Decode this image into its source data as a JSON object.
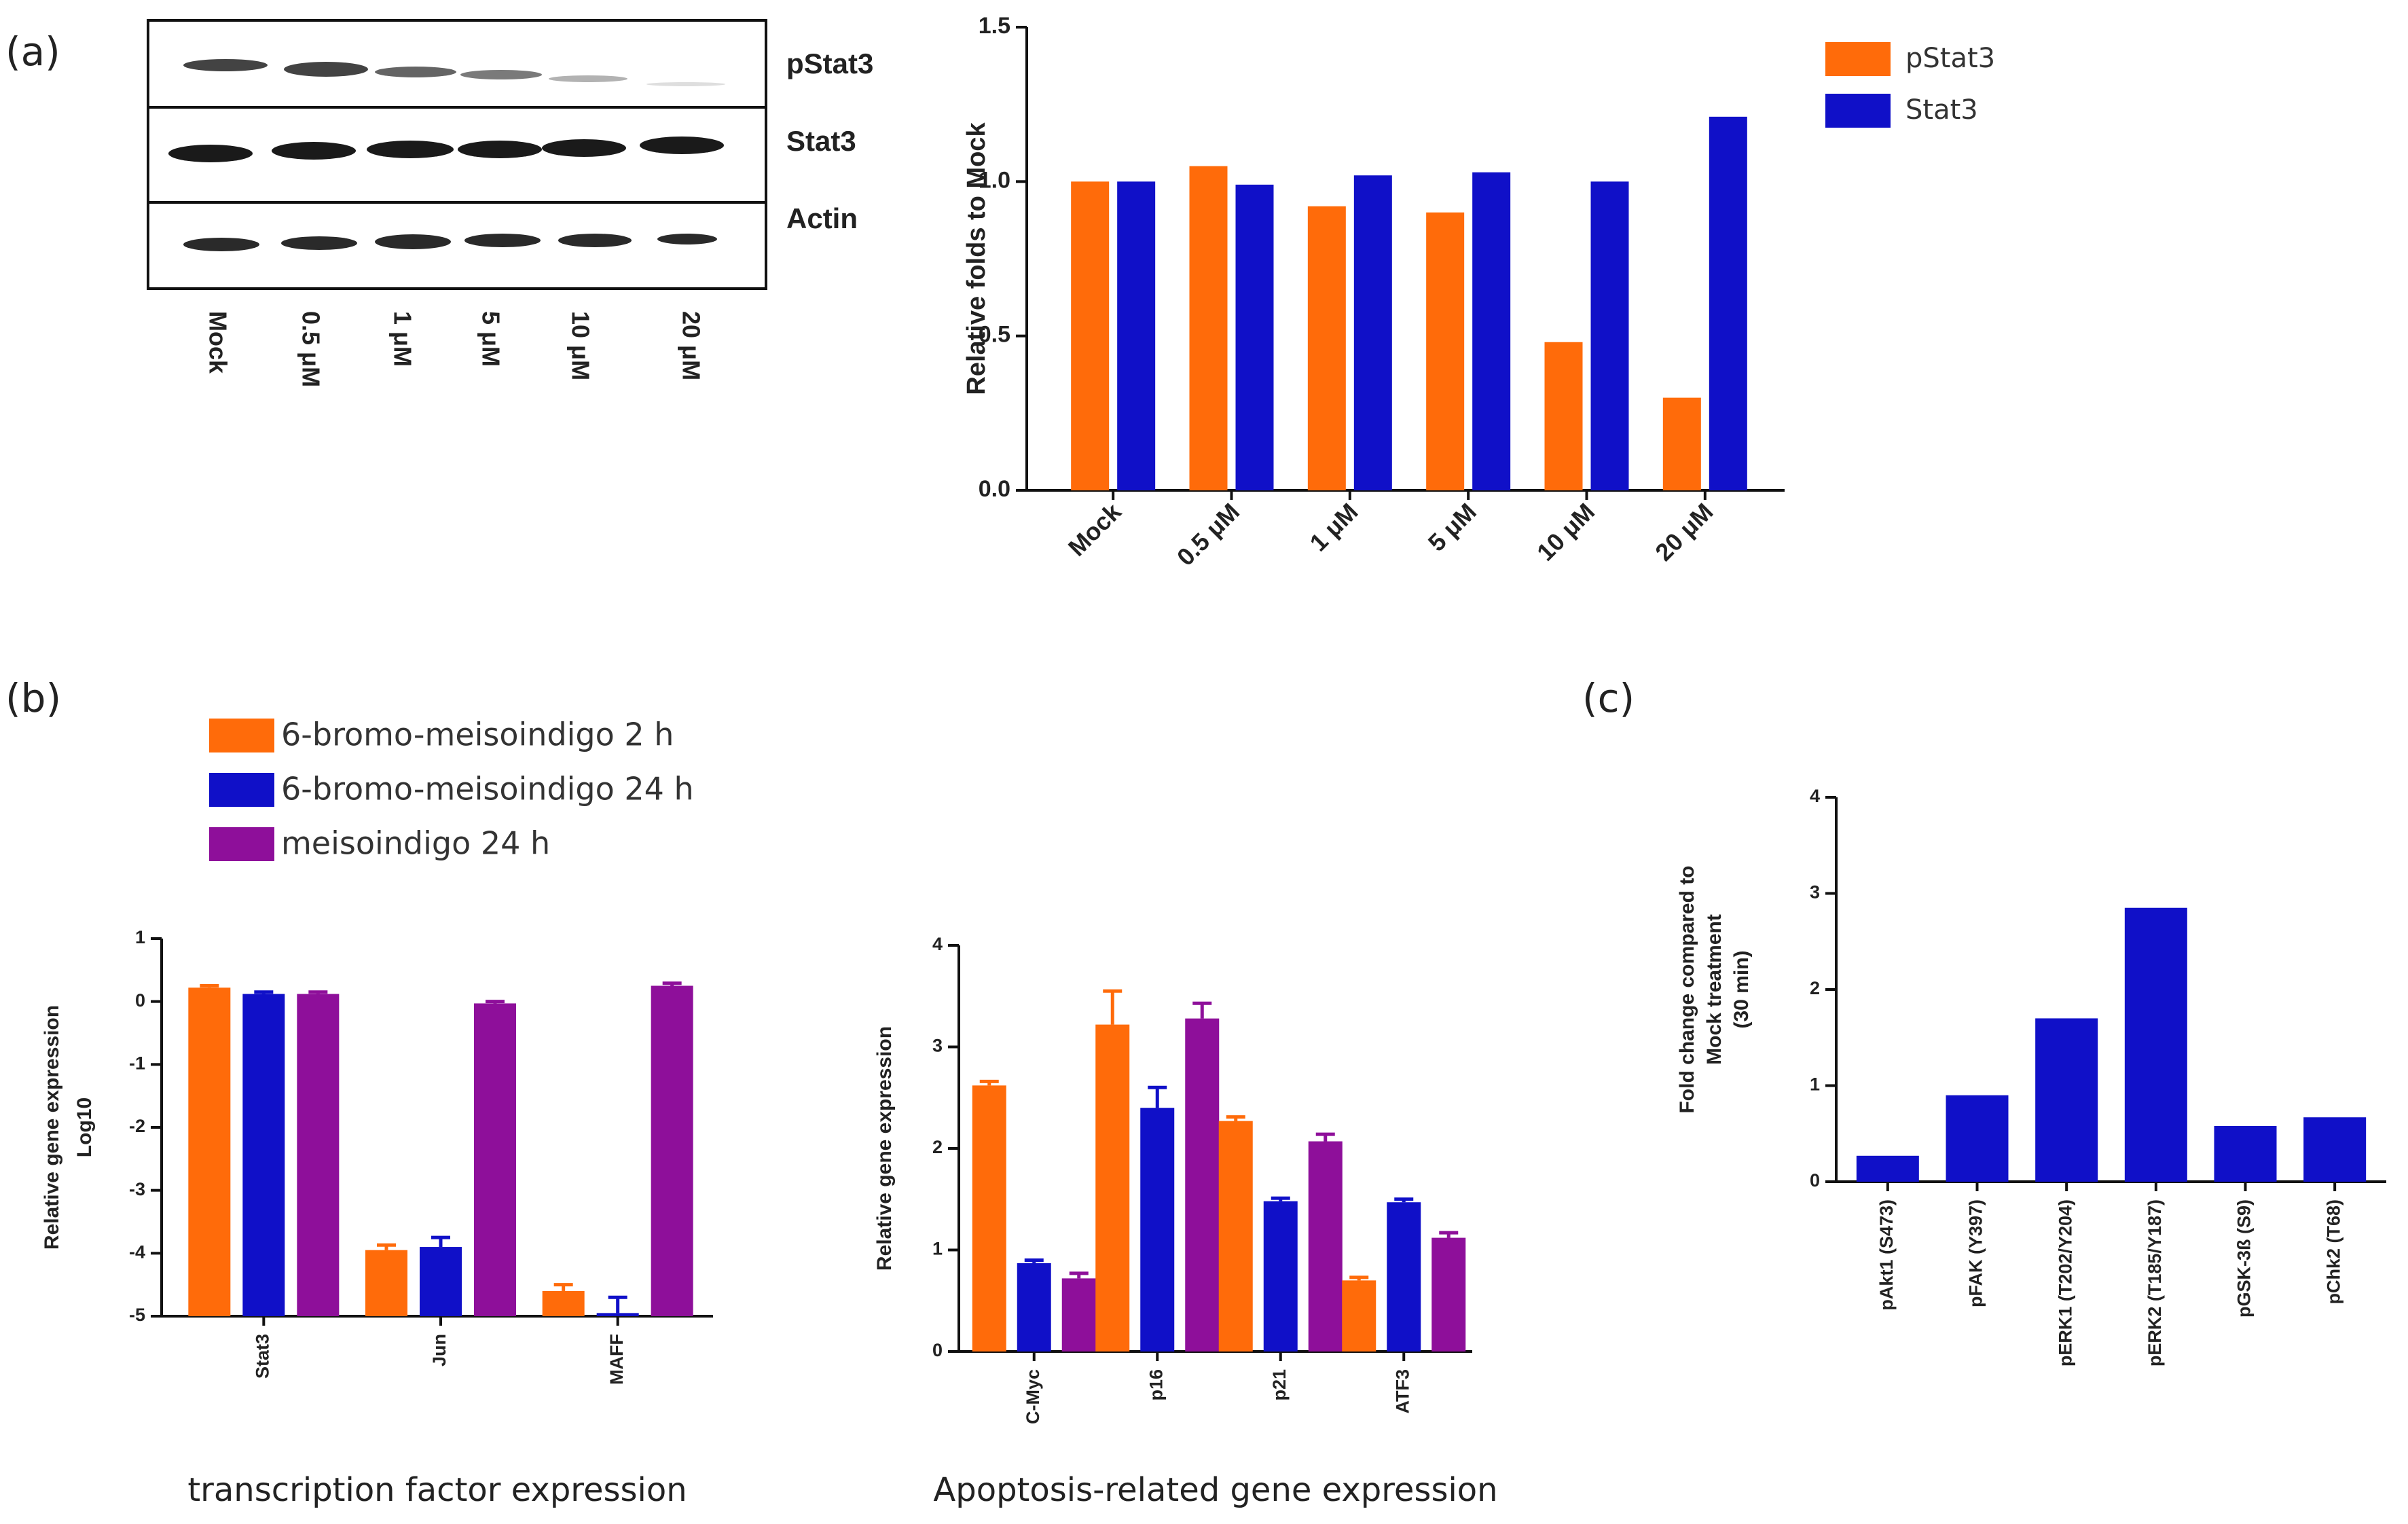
{
  "panels": {
    "a": "(a)",
    "b": "(b)",
    "c": "(c)"
  },
  "colors": {
    "orange": "#FF6B0A",
    "blue": "#1010C8",
    "purple": "#8E0F9A"
  },
  "western_blot": {
    "rows": [
      "pStat3",
      "Stat3",
      "Actin"
    ],
    "lanes": [
      "Mock",
      "0.5 μM",
      "1 μM",
      "5 μM",
      "10 μM",
      "20 μM"
    ]
  },
  "chart_data": [
    {
      "id": "a",
      "type": "bar",
      "title": "",
      "xlabel": "",
      "ylabel": "Relative folds to Mock",
      "ylim": [
        0,
        1.5
      ],
      "yticks": [
        0.0,
        0.5,
        1.0,
        1.5
      ],
      "ytick_labels": [
        "0.0",
        "0.5",
        "1.0",
        "1.5"
      ],
      "categories": [
        "Mock",
        "0.5 μM",
        "1 μM",
        "5 μM",
        "10 μM",
        "20 μM"
      ],
      "legend_position": "top-right",
      "series": [
        {
          "name": "pStat3",
          "color": "#FF6B0A",
          "values": [
            1.0,
            1.05,
            0.92,
            0.9,
            0.48,
            0.3
          ]
        },
        {
          "name": "Stat3",
          "color": "#1010C8",
          "values": [
            1.0,
            0.99,
            1.02,
            1.03,
            1.0,
            1.21
          ]
        }
      ]
    },
    {
      "id": "b_left",
      "type": "bar",
      "title": "",
      "xlabel": "transcription factor expression",
      "ylabel": [
        "Relative gene expression",
        "Log10"
      ],
      "ylim": [
        -5,
        1
      ],
      "yticks": [
        -5,
        -4,
        -3,
        -2,
        -1,
        0,
        1
      ],
      "ytick_labels": [
        "-5",
        "-4",
        "-3",
        "-2",
        "-1",
        "0",
        "1"
      ],
      "categories": [
        "Stat3",
        "Jun",
        "MAFF"
      ],
      "legend_position": "top-left",
      "series": [
        {
          "name": "6-bromo-meisoindigo 2 h",
          "color": "#FF6B0A",
          "values": [
            0.22,
            -3.95,
            -4.6
          ],
          "errors": [
            0.03,
            0.08,
            0.1
          ]
        },
        {
          "name": "6-bromo-meisoindigo 24 h",
          "color": "#1010C8",
          "values": [
            0.12,
            -3.9,
            -4.95
          ],
          "errors": [
            0.03,
            0.15,
            0.25
          ]
        },
        {
          "name": "meisoindigo 24 h",
          "color": "#8E0F9A",
          "values": [
            0.12,
            -0.03,
            0.25
          ],
          "errors": [
            0.03,
            0.03,
            0.04
          ]
        }
      ]
    },
    {
      "id": "b_right",
      "type": "bar",
      "title": "",
      "xlabel": "Apoptosis-related gene expression",
      "ylabel": "Relative gene expression",
      "ylim": [
        0,
        4
      ],
      "yticks": [
        0,
        1,
        2,
        3,
        4
      ],
      "ytick_labels": [
        "0",
        "1",
        "2",
        "3",
        "4"
      ],
      "categories": [
        "C-Myc",
        "p16",
        "p21",
        "ATF3"
      ],
      "series": [
        {
          "name": "6-bromo-meisoindigo 2 h",
          "color": "#FF6B0A",
          "values": [
            2.62,
            3.22,
            2.27,
            0.7
          ],
          "errors": [
            0.04,
            0.33,
            0.04,
            0.03
          ]
        },
        {
          "name": "6-bromo-meisoindigo 24 h",
          "color": "#1010C8",
          "values": [
            0.87,
            2.4,
            1.48,
            1.47
          ],
          "errors": [
            0.03,
            0.2,
            0.03,
            0.03
          ]
        },
        {
          "name": "meisoindigo 24 h",
          "color": "#8E0F9A",
          "values": [
            0.72,
            3.28,
            2.07,
            1.12
          ],
          "errors": [
            0.05,
            0.15,
            0.07,
            0.05
          ]
        }
      ]
    },
    {
      "id": "c",
      "type": "bar",
      "title": "",
      "xlabel": "",
      "ylabel": [
        "Fold change compared to",
        "Mock treatment",
        "(30 min)"
      ],
      "ylim": [
        0,
        4
      ],
      "yticks": [
        0,
        1,
        2,
        3,
        4
      ],
      "ytick_labels": [
        "0",
        "1",
        "2",
        "3",
        "4"
      ],
      "categories": [
        "pAkt1 (S473)",
        "pFAK (Y397)",
        "pERK1 (T202/Y204)",
        "pERK2 (T185/Y187)",
        "pGSK-3ß (S9)",
        "pChk2 (T68)"
      ],
      "series": [
        {
          "name": "fold change",
          "color": "#1010C8",
          "values": [
            0.27,
            0.9,
            1.7,
            2.85,
            0.58,
            0.67
          ]
        }
      ]
    }
  ]
}
